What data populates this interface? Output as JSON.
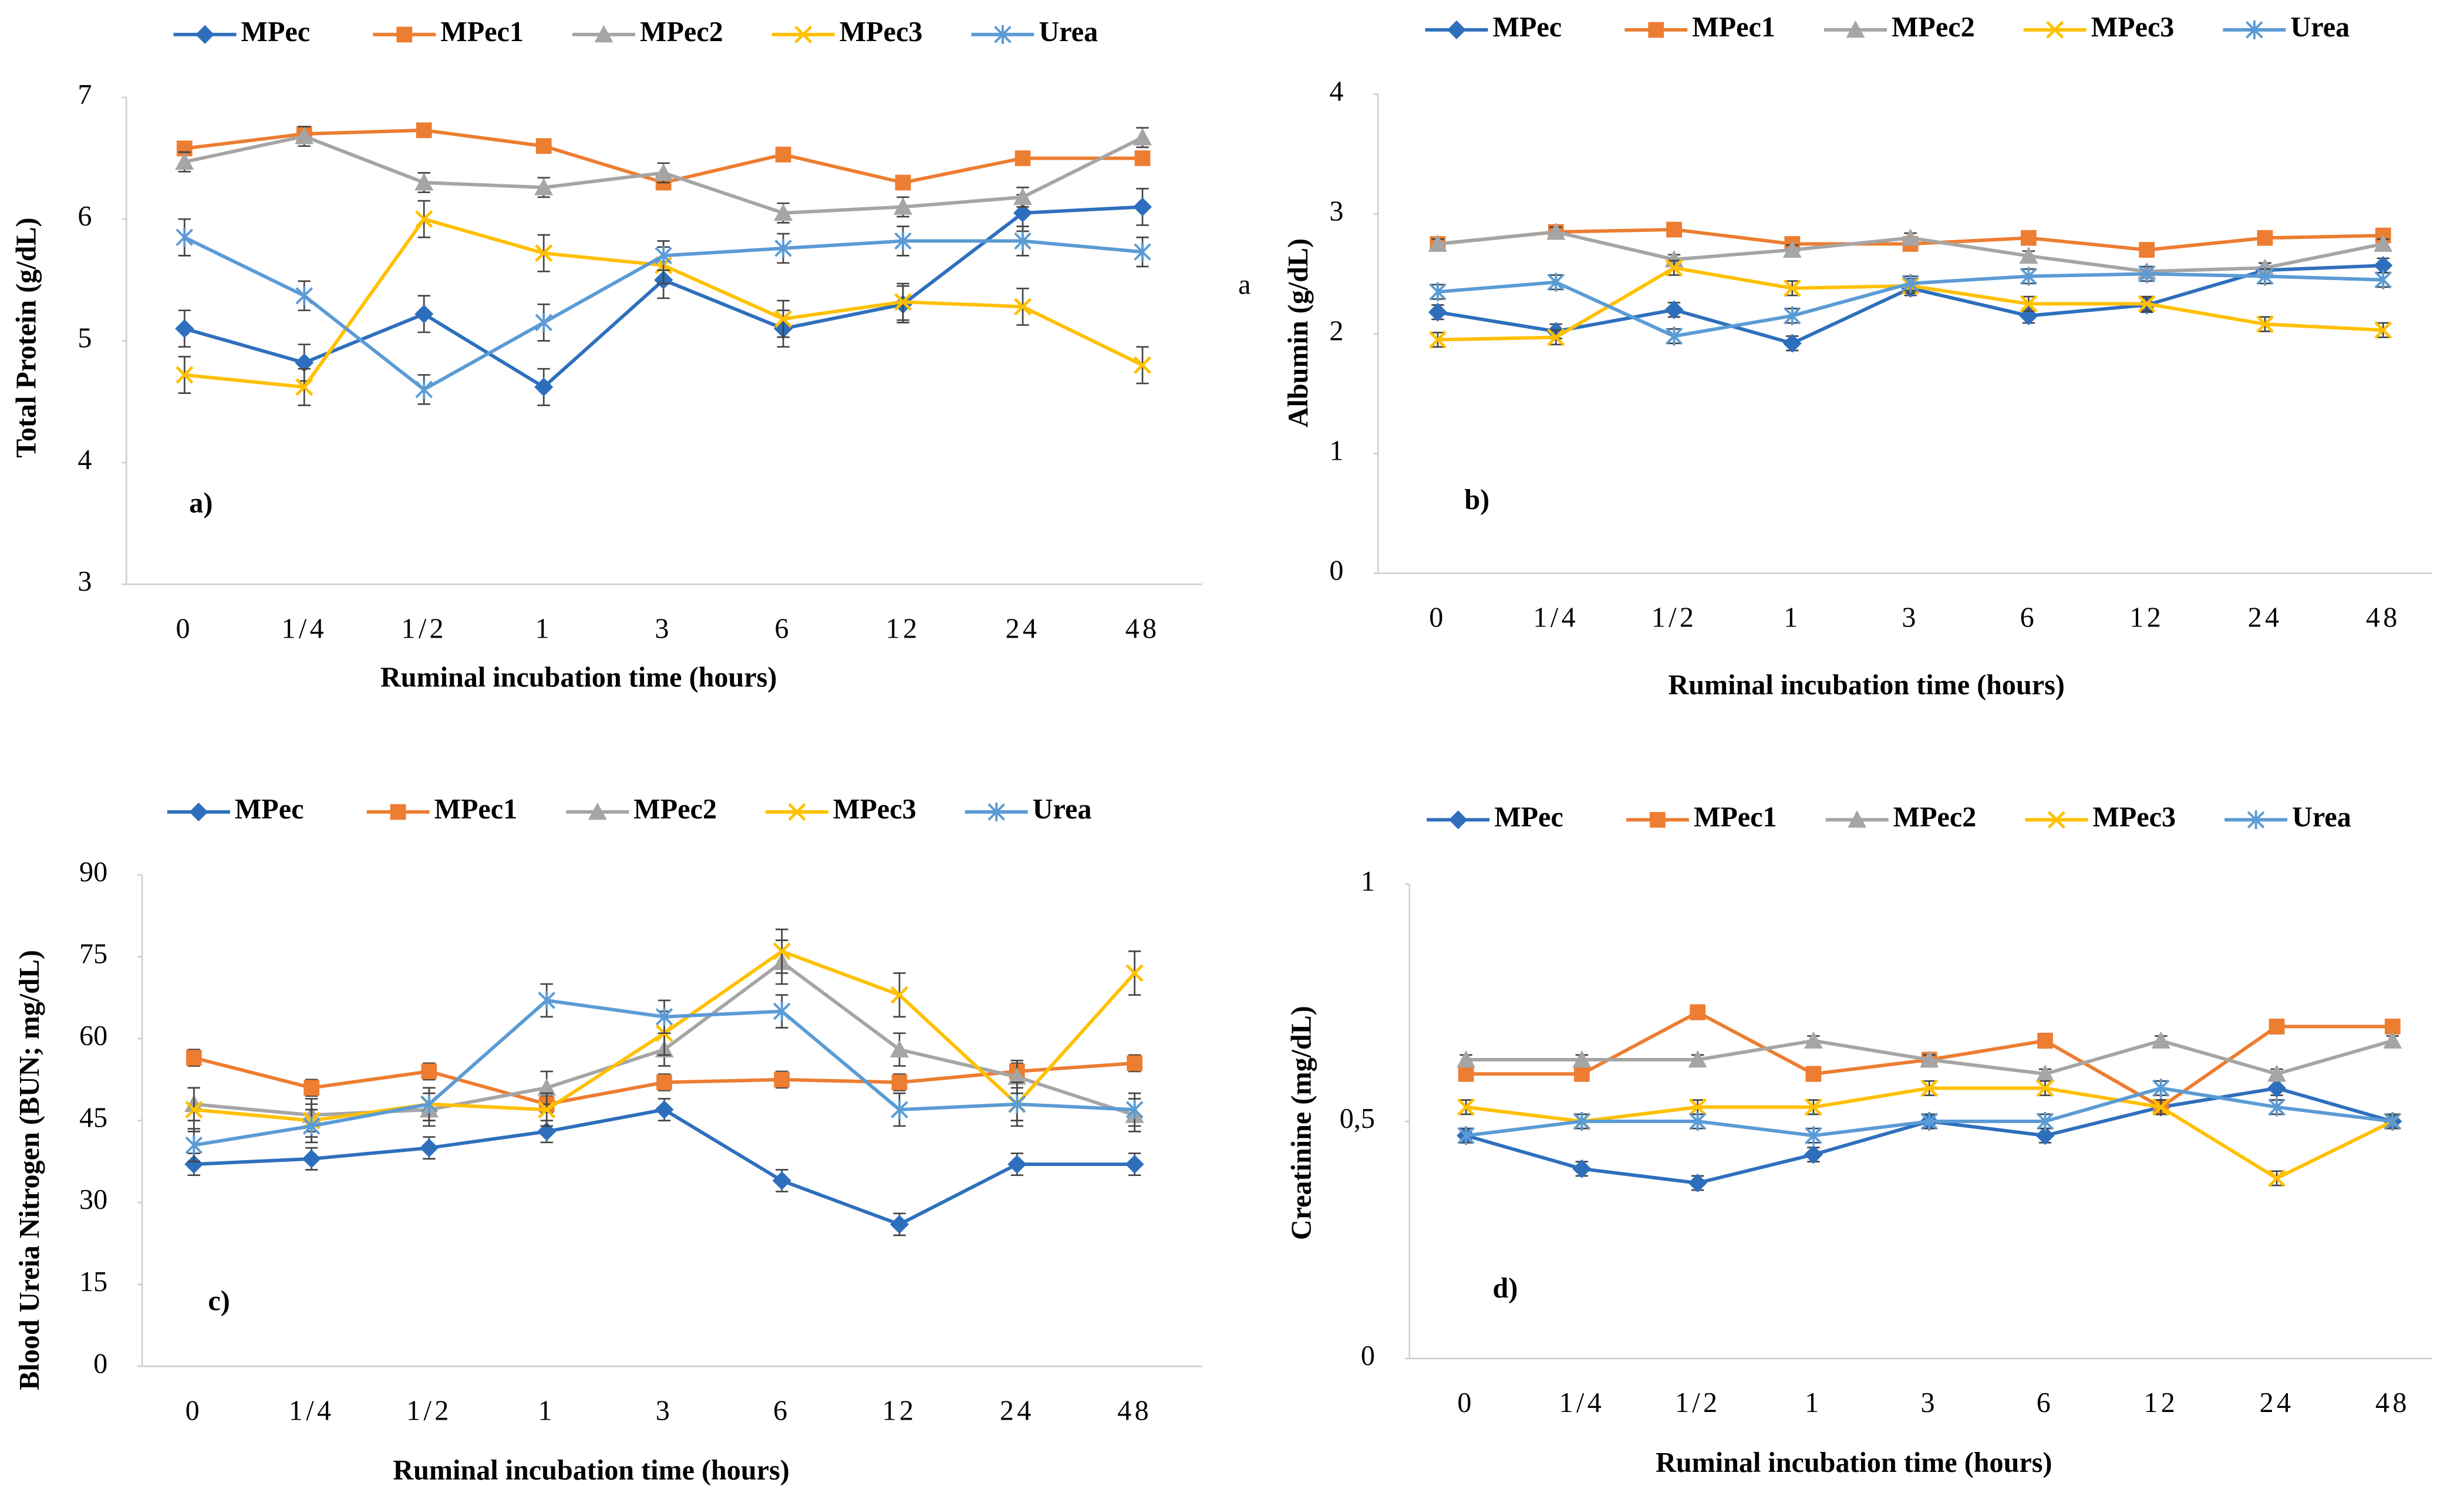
{
  "chart_data": [
    {
      "type": "line",
      "y_label": "Total Protein (g/dL)",
      "x_label": "Ruminal incubation time (hours)",
      "annotations": [
        "a)"
      ],
      "categories": [
        "0",
        "1/4",
        "1/2",
        "1",
        "3",
        "6",
        "12",
        "24",
        "48"
      ],
      "ylim": [
        3,
        7
      ],
      "yticks": [
        3,
        4,
        5,
        6,
        7
      ],
      "legend": "top",
      "series": [
        {
          "name": "MPec",
          "color": "#2e6fbd",
          "values": [
            5.1,
            4.82,
            5.22,
            4.62,
            5.5,
            5.1,
            5.3,
            6.05,
            6.1
          ],
          "errors": [
            0.15,
            0.15,
            0.15,
            0.15,
            0.15,
            0.15,
            0.15,
            0.15,
            0.15
          ]
        },
        {
          "name": "MPec1",
          "color": "#ed7d31",
          "values": [
            6.58,
            6.7,
            6.73,
            6.6,
            6.3,
            6.53,
            6.3,
            6.5,
            6.5
          ],
          "errors": [
            0.05,
            0.05,
            0.05,
            0.05,
            0.05,
            0.05,
            0.05,
            0.05,
            0.05
          ]
        },
        {
          "name": "MPec2",
          "color": "#a5a5a5",
          "values": [
            6.47,
            6.68,
            6.3,
            6.26,
            6.38,
            6.05,
            6.1,
            6.18,
            6.67
          ],
          "errors": [
            0.08,
            0.08,
            0.08,
            0.08,
            0.08,
            0.08,
            0.08,
            0.08,
            0.08
          ]
        },
        {
          "name": "MPec3",
          "color": "#ffc000",
          "values": [
            4.72,
            4.62,
            6.0,
            5.72,
            5.62,
            5.18,
            5.32,
            5.28,
            4.8
          ],
          "errors": [
            0.15,
            0.15,
            0.15,
            0.15,
            0.15,
            0.15,
            0.15,
            0.15,
            0.15
          ]
        },
        {
          "name": "Urea",
          "color": "#5b9bd5",
          "values": [
            5.85,
            5.37,
            4.6,
            5.15,
            5.7,
            5.76,
            5.82,
            5.82,
            5.73
          ],
          "errors": [
            0.15,
            0.12,
            0.12,
            0.15,
            0.12,
            0.12,
            0.12,
            0.12,
            0.12
          ]
        }
      ]
    },
    {
      "type": "line",
      "y_label": "Albumin (g/dL)",
      "x_label": "Ruminal incubation time (hours)",
      "annotations": [
        "b)",
        "a"
      ],
      "categories": [
        "0",
        "1/4",
        "1/2",
        "1",
        "3",
        "6",
        "12",
        "24",
        "48"
      ],
      "ylim": [
        0,
        4
      ],
      "yticks": [
        0,
        1,
        2,
        3,
        4
      ],
      "legend": "top",
      "series": [
        {
          "name": "MPec",
          "color": "#2e6fbd",
          "values": [
            2.18,
            2.02,
            2.2,
            1.92,
            2.38,
            2.15,
            2.24,
            2.53,
            2.57
          ],
          "errors": [
            0.06,
            0.06,
            0.06,
            0.06,
            0.06,
            0.06,
            0.06,
            0.06,
            0.06
          ]
        },
        {
          "name": "MPec1",
          "color": "#ed7d31",
          "values": [
            2.75,
            2.85,
            2.87,
            2.75,
            2.75,
            2.8,
            2.7,
            2.8,
            2.82
          ],
          "errors": [
            0.04,
            0.04,
            0.04,
            0.04,
            0.04,
            0.04,
            0.04,
            0.04,
            0.04
          ]
        },
        {
          "name": "MPec2",
          "color": "#a5a5a5",
          "values": [
            2.75,
            2.85,
            2.62,
            2.7,
            2.8,
            2.65,
            2.52,
            2.55,
            2.75
          ],
          "errors": [
            0.04,
            0.04,
            0.04,
            0.04,
            0.04,
            0.04,
            0.04,
            0.04,
            0.04
          ]
        },
        {
          "name": "MPec3",
          "color": "#ffc000",
          "values": [
            1.95,
            1.97,
            2.55,
            2.38,
            2.4,
            2.25,
            2.25,
            2.08,
            2.03
          ],
          "errors": [
            0.06,
            0.06,
            0.06,
            0.06,
            0.06,
            0.06,
            0.06,
            0.06,
            0.06
          ]
        },
        {
          "name": "Urea",
          "color": "#5b9bd5",
          "values": [
            2.35,
            2.43,
            1.98,
            2.15,
            2.42,
            2.48,
            2.5,
            2.48,
            2.45
          ],
          "errors": [
            0.06,
            0.06,
            0.06,
            0.06,
            0.06,
            0.06,
            0.06,
            0.06,
            0.06
          ]
        }
      ]
    },
    {
      "type": "line",
      "y_label": "Blood Ureia Nitrogen (BUN; mg/dL)",
      "x_label": "Ruminal incubation time (hours)",
      "annotations": [
        "c)"
      ],
      "categories": [
        "0",
        "1/4",
        "1/2",
        "1",
        "3",
        "6",
        "12",
        "24",
        "48"
      ],
      "ylim": [
        0,
        90
      ],
      "yticks": [
        0,
        15,
        30,
        45,
        60,
        75,
        90
      ],
      "legend": "top",
      "series": [
        {
          "name": "MPec",
          "color": "#2e6fbd",
          "values": [
            37,
            38,
            40,
            43,
            47,
            34,
            26,
            37,
            37
          ],
          "errors": [
            2,
            2,
            2,
            2,
            2,
            2,
            2,
            2,
            2
          ]
        },
        {
          "name": "MPec1",
          "color": "#ed7d31",
          "values": [
            56.5,
            51,
            54,
            48,
            52,
            52.5,
            52,
            54,
            55.5
          ],
          "errors": [
            1.5,
            1.5,
            1.5,
            1.5,
            1.5,
            1.5,
            1.5,
            1.5,
            1.5
          ]
        },
        {
          "name": "MPec2",
          "color": "#a5a5a5",
          "values": [
            48,
            46,
            47,
            51,
            58,
            74,
            58,
            53,
            46
          ],
          "errors": [
            3,
            3,
            3,
            3,
            3,
            4,
            3,
            3,
            3
          ]
        },
        {
          "name": "MPec3",
          "color": "#ffc000",
          "values": [
            47,
            45,
            48,
            47,
            61,
            76,
            68,
            48,
            72
          ],
          "errors": [
            4,
            3,
            3,
            3,
            4,
            4,
            4,
            4,
            4
          ]
        },
        {
          "name": "Urea",
          "color": "#5b9bd5",
          "values": [
            40.5,
            44,
            48,
            67,
            64,
            65,
            47,
            48,
            47
          ],
          "errors": [
            3,
            3,
            3,
            3,
            3,
            3,
            3,
            3,
            3
          ]
        }
      ]
    },
    {
      "type": "line",
      "y_label": "Creatinine (mg/dL)",
      "x_label": "Ruminal incubation time (hours)",
      "annotations": [
        "d)"
      ],
      "categories": [
        "0",
        "1/4",
        "1/2",
        "1",
        "3",
        "6",
        "12",
        "24",
        "48"
      ],
      "ylim": [
        0,
        1
      ],
      "yticks": [
        0,
        {
          "value": 0.5,
          "label": "0,5"
        },
        1
      ],
      "legend": "top",
      "series": [
        {
          "name": "MPec",
          "color": "#2e6fbd",
          "values": [
            0.47,
            0.4,
            0.37,
            0.43,
            0.5,
            0.47,
            0.53,
            0.57,
            0.5
          ],
          "errors": [
            0.015,
            0.015,
            0.015,
            0.015,
            0.015,
            0.015,
            0.015,
            0.015,
            0.015
          ]
        },
        {
          "name": "MPec1",
          "color": "#ed7d31",
          "values": [
            0.6,
            0.6,
            0.73,
            0.6,
            0.63,
            0.67,
            0.53,
            0.7,
            0.7
          ],
          "errors": [
            0.015,
            0.015,
            0.015,
            0.015,
            0.015,
            0.015,
            0.015,
            0.015,
            0.015
          ]
        },
        {
          "name": "MPec2",
          "color": "#a5a5a5",
          "values": [
            0.63,
            0.63,
            0.63,
            0.67,
            0.63,
            0.6,
            0.67,
            0.6,
            0.67
          ],
          "errors": [
            0.01,
            0.01,
            0.01,
            0.01,
            0.01,
            0.01,
            0.01,
            0.01,
            0.01
          ]
        },
        {
          "name": "MPec3",
          "color": "#ffc000",
          "values": [
            0.53,
            0.5,
            0.53,
            0.53,
            0.57,
            0.57,
            0.53,
            0.38,
            0.5
          ],
          "errors": [
            0.015,
            0.015,
            0.015,
            0.015,
            0.015,
            0.015,
            0.015,
            0.015,
            0.015
          ]
        },
        {
          "name": "Urea",
          "color": "#5b9bd5",
          "values": [
            0.47,
            0.5,
            0.5,
            0.47,
            0.5,
            0.5,
            0.57,
            0.53,
            0.5
          ],
          "errors": [
            0.015,
            0.015,
            0.015,
            0.015,
            0.015,
            0.015,
            0.015,
            0.015,
            0.015
          ]
        }
      ]
    }
  ]
}
